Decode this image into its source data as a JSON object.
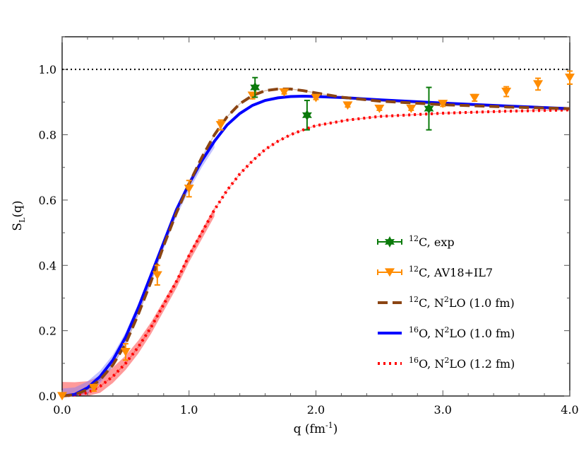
{
  "chart_data": {
    "type": "line",
    "xlabel": {
      "base": "q (fm",
      "sup": "-1",
      "tail": ")"
    },
    "ylabel": {
      "base": "S",
      "sub": "L",
      "tail": "(q)"
    },
    "xlim": [
      0,
      4
    ],
    "ylim": [
      0,
      1.1
    ],
    "xticks": [
      0,
      1,
      2,
      3,
      4
    ],
    "xtick_labels": [
      "0.0",
      "1.0",
      "2.0",
      "3.0",
      "4.0"
    ],
    "yticks": [
      0,
      0.2,
      0.4,
      0.6,
      0.8,
      1.0
    ],
    "ytick_labels": [
      "0.0",
      "0.2",
      "0.4",
      "0.6",
      "0.8",
      "1.0"
    ],
    "grid": false,
    "reference_line": {
      "y": 1.0,
      "style": "dotted",
      "color": "#000000"
    },
    "legend_placement": "lower-right",
    "series": [
      {
        "key": "exp",
        "label": [
          {
            "sup": "12"
          },
          {
            "text": "C, exp"
          }
        ],
        "kind": "markers-errorbars",
        "marker": "star",
        "color": "#0b7a0b",
        "points": [
          {
            "x": 1.52,
            "y": 0.945,
            "err": 0.03
          },
          {
            "x": 1.93,
            "y": 0.86,
            "err": 0.045
          },
          {
            "x": 2.89,
            "y": 0.88,
            "err": 0.065
          }
        ]
      },
      {
        "key": "av18",
        "label": [
          {
            "sup": "12"
          },
          {
            "text": "C, AV18+IL7"
          }
        ],
        "kind": "markers-errorbars",
        "marker": "triangle-down",
        "color": "#ff8c00",
        "points": [
          {
            "x": 0.0,
            "y": 0.0,
            "err": 0.0
          },
          {
            "x": 0.25,
            "y": 0.025,
            "err": 0.01
          },
          {
            "x": 0.5,
            "y": 0.135,
            "err": 0.025
          },
          {
            "x": 0.75,
            "y": 0.37,
            "err": 0.03
          },
          {
            "x": 1.0,
            "y": 0.635,
            "err": 0.025
          },
          {
            "x": 1.25,
            "y": 0.83,
            "err": 0.015
          },
          {
            "x": 1.5,
            "y": 0.92,
            "err": 0.01
          },
          {
            "x": 1.75,
            "y": 0.93,
            "err": 0.005
          },
          {
            "x": 2.0,
            "y": 0.913,
            "err": 0.005
          },
          {
            "x": 2.25,
            "y": 0.89,
            "err": 0.005
          },
          {
            "x": 2.5,
            "y": 0.88,
            "err": 0.005
          },
          {
            "x": 2.75,
            "y": 0.88,
            "err": 0.005
          },
          {
            "x": 3.0,
            "y": 0.895,
            "err": 0.008
          },
          {
            "x": 3.25,
            "y": 0.913,
            "err": 0.01
          },
          {
            "x": 3.5,
            "y": 0.932,
            "err": 0.015
          },
          {
            "x": 3.75,
            "y": 0.955,
            "err": 0.018
          },
          {
            "x": 4.0,
            "y": 0.975,
            "err": 0.02
          }
        ]
      },
      {
        "key": "c12n2lo",
        "label": [
          {
            "sup": "12"
          },
          {
            "text": "C, N"
          },
          {
            "sup": "2"
          },
          {
            "text": "LO (1.0 fm)"
          }
        ],
        "kind": "line",
        "style": "dashed",
        "color": "#8b4513",
        "x": [
          0,
          0.1,
          0.2,
          0.3,
          0.4,
          0.5,
          0.6,
          0.7,
          0.8,
          0.9,
          1.0,
          1.1,
          1.2,
          1.3,
          1.4,
          1.5,
          1.6,
          1.7,
          1.8,
          1.9,
          2.0,
          2.2,
          2.5,
          3.0,
          3.5,
          4.0
        ],
        "y": [
          0,
          0.004,
          0.02,
          0.05,
          0.095,
          0.16,
          0.25,
          0.35,
          0.46,
          0.56,
          0.65,
          0.73,
          0.8,
          0.855,
          0.895,
          0.92,
          0.935,
          0.94,
          0.94,
          0.935,
          0.928,
          0.915,
          0.903,
          0.892,
          0.885,
          0.88
        ]
      },
      {
        "key": "o16n2lo10",
        "label": [
          {
            "sup": "16"
          },
          {
            "text": "O, N"
          },
          {
            "sup": "2"
          },
          {
            "text": "LO (1.0 fm)"
          }
        ],
        "kind": "line",
        "style": "solid",
        "color": "#0000ff",
        "x": [
          0,
          0.1,
          0.2,
          0.3,
          0.4,
          0.5,
          0.6,
          0.7,
          0.8,
          0.9,
          1.0,
          1.1,
          1.2,
          1.3,
          1.4,
          1.5,
          1.6,
          1.7,
          1.8,
          1.9,
          2.0,
          2.2,
          2.5,
          3.0,
          3.5,
          4.0
        ],
        "y": [
          0,
          0.005,
          0.025,
          0.06,
          0.11,
          0.18,
          0.27,
          0.37,
          0.47,
          0.57,
          0.65,
          0.72,
          0.78,
          0.83,
          0.865,
          0.89,
          0.905,
          0.913,
          0.917,
          0.918,
          0.917,
          0.914,
          0.907,
          0.897,
          0.888,
          0.88
        ]
      },
      {
        "key": "o16n2lo12",
        "label": [
          {
            "sup": "16"
          },
          {
            "text": "O, N"
          },
          {
            "sup": "2"
          },
          {
            "text": "LO (1.2 fm)"
          }
        ],
        "kind": "line",
        "style": "dotted",
        "color": "#ff0000",
        "x": [
          0,
          0.1,
          0.2,
          0.3,
          0.4,
          0.5,
          0.6,
          0.7,
          0.8,
          0.9,
          1.0,
          1.1,
          1.2,
          1.3,
          1.4,
          1.5,
          1.6,
          1.7,
          1.8,
          1.9,
          2.0,
          2.25,
          2.5,
          3.0,
          3.5,
          4.0
        ],
        "y": [
          0,
          0.003,
          0.01,
          0.03,
          0.06,
          0.1,
          0.15,
          0.21,
          0.28,
          0.35,
          0.43,
          0.5,
          0.57,
          0.63,
          0.68,
          0.72,
          0.755,
          0.78,
          0.8,
          0.815,
          0.828,
          0.845,
          0.856,
          0.866,
          0.872,
          0.876
        ]
      }
    ]
  }
}
